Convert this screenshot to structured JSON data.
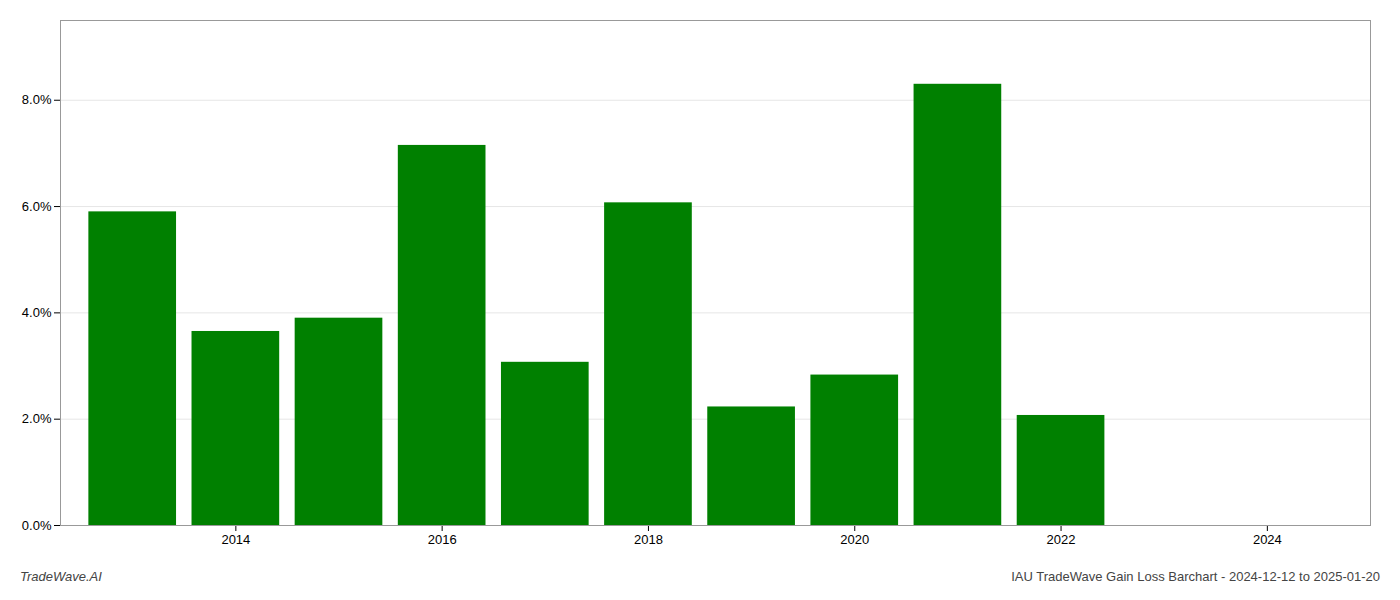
{
  "chart_data": {
    "type": "bar",
    "x": [
      2013,
      2014,
      2015,
      2016,
      2017,
      2018,
      2019,
      2020,
      2021,
      2022
    ],
    "values": [
      0.059,
      0.0365,
      0.039,
      0.0715,
      0.0307,
      0.0607,
      0.0223,
      0.0283,
      0.083,
      0.0207
    ],
    "color": "#008000",
    "xlim": [
      2012.3,
      2025.0
    ],
    "xticks": [
      2014,
      2016,
      2018,
      2020,
      2022,
      2024
    ],
    "ylim": [
      0,
      0.095
    ],
    "yticks": [
      {
        "value": 0.0,
        "label": "0.0%"
      },
      {
        "value": 0.02,
        "label": "2.0%"
      },
      {
        "value": 0.04,
        "label": "4.0%"
      },
      {
        "value": 0.06,
        "label": "6.0%"
      },
      {
        "value": 0.08,
        "label": "8.0%"
      }
    ],
    "grid": true,
    "annotations": [
      "TradeWave.AI",
      "IAU TradeWave Gain Loss Barchart - 2024-12-12 to 2025-01-20"
    ]
  }
}
